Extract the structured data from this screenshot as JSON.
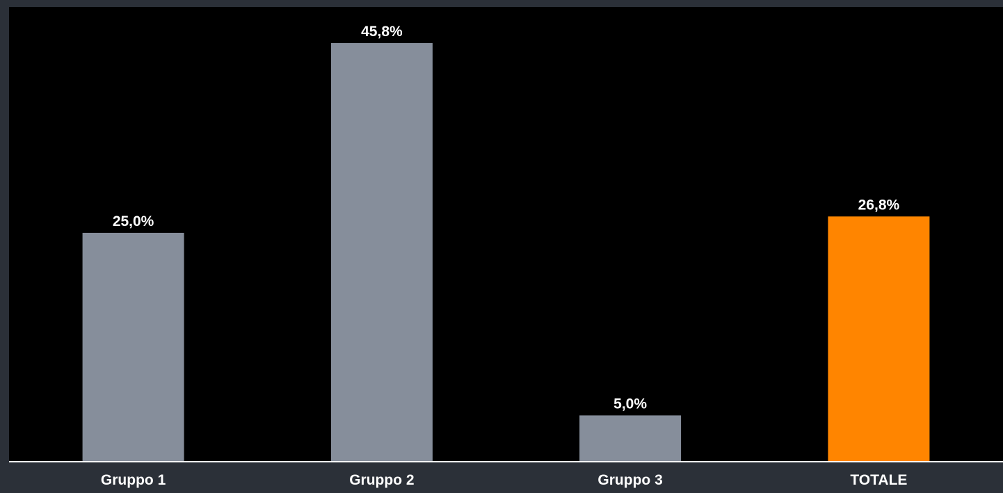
{
  "chart_data": {
    "type": "bar",
    "categories": [
      "Gruppo 1",
      "Gruppo 2",
      "Gruppo 3",
      "TOTALE"
    ],
    "values": [
      25.0,
      45.8,
      5.0,
      26.8
    ],
    "value_labels": [
      "25,0%",
      "45,8%",
      "5,0%",
      "26,8%"
    ],
    "unit": "%",
    "title": "",
    "xlabel": "",
    "ylabel": "",
    "ylim": [
      0,
      45.8
    ],
    "grid": false,
    "legend": "none",
    "colors": {
      "background": "#2b3038",
      "plot_background": "#000000",
      "bar_default": "#868e9b",
      "bar_highlight": "#ff8500",
      "axis": "#ffffff",
      "text": "#ffffff"
    },
    "highlight_category": "TOTALE"
  }
}
